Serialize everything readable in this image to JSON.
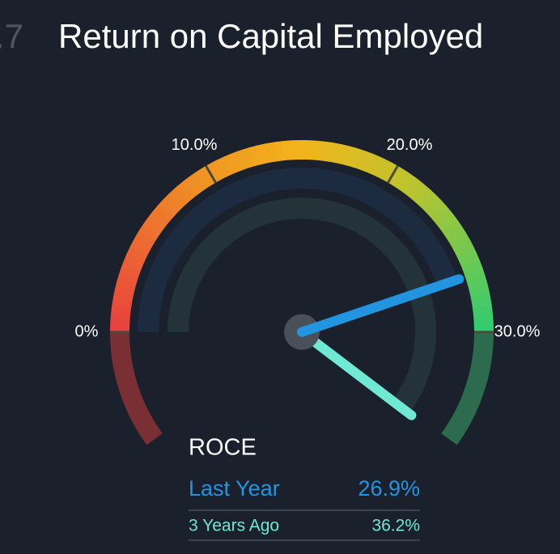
{
  "header": {
    "fragment": ".7",
    "title": "Return on Capital Employed"
  },
  "chart_data": {
    "type": "gauge",
    "title": "ROCE",
    "ylim": [
      0,
      30
    ],
    "yticks": [
      {
        "value": 0,
        "label": "0%"
      },
      {
        "value": 10,
        "label": "10.0%"
      },
      {
        "value": 20,
        "label": "20.0%"
      },
      {
        "value": 30,
        "label": "30.0%"
      }
    ],
    "series": [
      {
        "name": "Last Year",
        "color": "#2394e0",
        "values": [
          26.9
        ],
        "value_labels": [
          "26.9%"
        ]
      },
      {
        "name": "3 Years Ago",
        "color": "#6fe8d4",
        "values": [
          36.2
        ],
        "value_labels": [
          "36.2%"
        ]
      }
    ]
  }
}
